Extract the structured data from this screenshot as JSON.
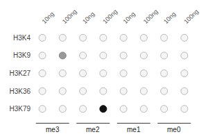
{
  "chart_data": {
    "type": "dot_matrix",
    "categories": [
      "10ng",
      "100ng",
      "10ng",
      "100ng",
      "10ng",
      "100ng",
      "10ng",
      "100ng"
    ],
    "rows": [
      "H3K4",
      "H3K9",
      "H3K27",
      "H3K36",
      "H3K79"
    ],
    "annotations": [
      "me3",
      "me2",
      "me1",
      "me0"
    ],
    "colors": [
      [
        "#f5f5f5",
        "#f5f5f5",
        "#f5f5f5",
        "#f5f5f5",
        "#f5f5f5",
        "#f5f5f5",
        "#f5f5f5",
        "#f5f5f5"
      ],
      [
        "#f5f5f5",
        "#999999",
        "#f5f5f5",
        "#f5f5f5",
        "#f5f5f5",
        "#f5f5f5",
        "#f5f5f5",
        "#f5f5f5"
      ],
      [
        "#f5f5f5",
        "#f5f5f5",
        "#f5f5f5",
        "#f5f5f5",
        "#f5f5f5",
        "#f5f5f5",
        "#f5f5f5",
        "#f5f5f5"
      ],
      [
        "#f5f5f5",
        "#f5f5f5",
        "#f5f5f5",
        "#f5f5f5",
        "#f5f5f5",
        "#f5f5f5",
        "#f5f5f5",
        "#f5f5f5"
      ],
      [
        "#f5f5f5",
        "#f5f5f5",
        "#f5f5f5",
        "#111111",
        "#f5f5f5",
        "#f5f5f5",
        "#f5f5f5",
        "#f5f5f5"
      ]
    ],
    "edge_colors": [
      [
        "#bbbbbb",
        "#bbbbbb",
        "#bbbbbb",
        "#bbbbbb",
        "#bbbbbb",
        "#bbbbbb",
        "#bbbbbb",
        "#bbbbbb"
      ],
      [
        "#bbbbbb",
        "#888888",
        "#bbbbbb",
        "#bbbbbb",
        "#bbbbbb",
        "#bbbbbb",
        "#bbbbbb",
        "#bbbbbb"
      ],
      [
        "#bbbbbb",
        "#bbbbbb",
        "#bbbbbb",
        "#bbbbbb",
        "#bbbbbb",
        "#bbbbbb",
        "#bbbbbb",
        "#bbbbbb"
      ],
      [
        "#bbbbbb",
        "#bbbbbb",
        "#bbbbbb",
        "#bbbbbb",
        "#bbbbbb",
        "#bbbbbb",
        "#bbbbbb",
        "#bbbbbb"
      ],
      [
        "#bbbbbb",
        "#bbbbbb",
        "#bbbbbb",
        "#111111",
        "#bbbbbb",
        "#bbbbbb",
        "#bbbbbb",
        "#bbbbbb"
      ]
    ],
    "grid": false
  }
}
